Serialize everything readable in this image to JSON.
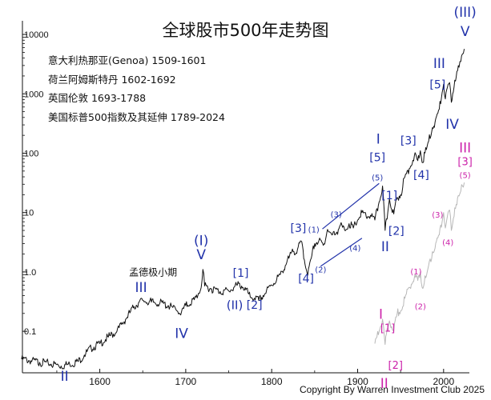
{
  "chart_data": {
    "type": "line",
    "title": "全球股市500年走势图",
    "y_scale": "log",
    "xlim": [
      1510,
      2030
    ],
    "ylim": [
      0.02,
      15000
    ],
    "x_ticks": [
      1600,
      1700,
      1800,
      1900,
      2000
    ],
    "y_ticks": [
      {
        "value": 0.1,
        "label": "0.1"
      },
      {
        "value": 1,
        "label": "1.0"
      },
      {
        "value": 10,
        "label": "10"
      },
      {
        "value": 100,
        "label": "100"
      },
      {
        "value": 1000,
        "label": "1000"
      },
      {
        "value": 10000,
        "label": "10000"
      }
    ],
    "grid": false,
    "legend_position": "top-left",
    "legend": [
      "意大利热那亚(Genoa) 1509-1601",
      "荷兰阿姆斯特丹 1602-1692",
      "英国伦敦 1693-1788",
      "美国标普500指数及其延伸 1789-2024"
    ],
    "series": [
      {
        "color": "#111111",
        "points": [
          [
            1509,
            0.034
          ],
          [
            1520,
            0.032
          ],
          [
            1530,
            0.03
          ],
          [
            1540,
            0.029
          ],
          [
            1555,
            0.026
          ],
          [
            1565,
            0.028
          ],
          [
            1575,
            0.031
          ],
          [
            1582,
            0.04
          ],
          [
            1590,
            0.052
          ],
          [
            1600,
            0.062
          ],
          [
            1610,
            0.08
          ],
          [
            1620,
            0.1
          ],
          [
            1630,
            0.16
          ],
          [
            1640,
            0.26
          ],
          [
            1645,
            0.3
          ],
          [
            1650,
            0.33
          ],
          [
            1660,
            0.31
          ],
          [
            1670,
            0.3
          ],
          [
            1680,
            0.27
          ],
          [
            1690,
            0.22
          ],
          [
            1695,
            0.21
          ],
          [
            1700,
            0.27
          ],
          [
            1710,
            0.34
          ],
          [
            1715,
            0.44
          ],
          [
            1718,
            0.55
          ],
          [
            1720,
            1.1
          ],
          [
            1722,
            0.58
          ],
          [
            1730,
            0.52
          ],
          [
            1740,
            0.47
          ],
          [
            1750,
            0.48
          ],
          [
            1760,
            0.6
          ],
          [
            1765,
            0.58
          ],
          [
            1770,
            0.5
          ],
          [
            1775,
            0.38
          ],
          [
            1780,
            0.36
          ],
          [
            1785,
            0.33
          ],
          [
            1790,
            0.4
          ],
          [
            1800,
            0.6
          ],
          [
            1810,
            0.9
          ],
          [
            1820,
            1.7
          ],
          [
            1825,
            2.2
          ],
          [
            1830,
            2.4
          ],
          [
            1835,
            3.2
          ],
          [
            1838,
            1.6
          ],
          [
            1842,
            0.88
          ],
          [
            1846,
            1.7
          ],
          [
            1850,
            3.0
          ],
          [
            1855,
            3.4
          ],
          [
            1860,
            2.8
          ],
          [
            1865,
            5.2
          ],
          [
            1870,
            4.2
          ],
          [
            1875,
            4.5
          ],
          [
            1880,
            6.2
          ],
          [
            1885,
            5.0
          ],
          [
            1890,
            6.5
          ],
          [
            1895,
            5.5
          ],
          [
            1900,
            7.5
          ],
          [
            1905,
            10.0
          ],
          [
            1910,
            8.5
          ],
          [
            1915,
            9.0
          ],
          [
            1920,
            7.5
          ],
          [
            1925,
            15.0
          ],
          [
            1929,
            28.0
          ],
          [
            1932,
            5.0
          ],
          [
            1935,
            10.0
          ],
          [
            1937,
            17.0
          ],
          [
            1942,
            9.5
          ],
          [
            1946,
            18.0
          ],
          [
            1950,
            20.0
          ],
          [
            1955,
            40.0
          ],
          [
            1960,
            55.0
          ],
          [
            1966,
            90.0
          ],
          [
            1970,
            75.0
          ],
          [
            1973,
            110.0
          ],
          [
            1975,
            70.0
          ],
          [
            1980,
            115.0
          ],
          [
            1987,
            270.0
          ],
          [
            1990,
            330.0
          ],
          [
            1995,
            550.0
          ],
          [
            2000,
            1450.0
          ],
          [
            2002,
            820.0
          ],
          [
            2007,
            1550.0
          ],
          [
            2009,
            720.0
          ],
          [
            2013,
            1700.0
          ],
          [
            2018,
            2800.0
          ],
          [
            2020,
            3500.0
          ],
          [
            2022,
            4700.0
          ],
          [
            2024,
            5700.0
          ]
        ]
      },
      {
        "color": "#b8b8b8",
        "points": [
          [
            1920,
            0.062
          ],
          [
            1925,
            0.1
          ],
          [
            1929,
            0.16
          ],
          [
            1932,
            0.06
          ],
          [
            1935,
            0.11
          ],
          [
            1937,
            0.15
          ],
          [
            1942,
            0.1
          ],
          [
            1946,
            0.2
          ],
          [
            1950,
            0.22
          ],
          [
            1955,
            0.36
          ],
          [
            1960,
            0.55
          ],
          [
            1966,
            0.8
          ],
          [
            1970,
            0.72
          ],
          [
            1973,
            1.0
          ],
          [
            1975,
            0.55
          ],
          [
            1980,
            0.85
          ],
          [
            1987,
            2.2
          ],
          [
            1990,
            2.5
          ],
          [
            1995,
            4.2
          ],
          [
            2000,
            10.0
          ],
          [
            2002,
            5.5
          ],
          [
            2007,
            11.0
          ],
          [
            2009,
            5.0
          ],
          [
            2013,
            12.0
          ],
          [
            2018,
            19.0
          ],
          [
            2020,
            23.0
          ],
          [
            2022,
            28.0
          ],
          [
            2024,
            32.0
          ]
        ]
      }
    ],
    "annotations": [
      {
        "text": "II",
        "x": 1559,
        "y": 0.017,
        "color": "#2233aa",
        "size": 17
      },
      {
        "text": "III",
        "x": 1648,
        "y": 0.54,
        "color": "#2233aa",
        "size": 17
      },
      {
        "text": "IV",
        "x": 1695,
        "y": 0.09,
        "color": "#2233aa",
        "size": 17
      },
      {
        "text": "孟德极小期",
        "x": 1662,
        "y": 0.96,
        "color": "#111111",
        "size": 12
      },
      {
        "text": "(I)",
        "x": 1718,
        "y": 3.3,
        "color": "#2233aa",
        "size": 17
      },
      {
        "text": "V",
        "x": 1718,
        "y": 1.9,
        "color": "#2233aa",
        "size": 17
      },
      {
        "text": "[1]",
        "x": 1764,
        "y": 0.94,
        "color": "#2233aa",
        "size": 14
      },
      {
        "text": "(II)",
        "x": 1757,
        "y": 0.27,
        "color": "#2233aa",
        "size": 15
      },
      {
        "text": "[2]",
        "x": 1780,
        "y": 0.27,
        "color": "#2233aa",
        "size": 14
      },
      {
        "text": "[3]",
        "x": 1831,
        "y": 5.3,
        "color": "#2233aa",
        "size": 14
      },
      {
        "text": "(1)",
        "x": 1849,
        "y": 5.1,
        "color": "#2233aa",
        "size": 10
      },
      {
        "text": "(2)",
        "x": 1857,
        "y": 1.07,
        "color": "#2233aa",
        "size": 10
      },
      {
        "text": "[4]",
        "x": 1840,
        "y": 0.75,
        "color": "#2233aa",
        "size": 14
      },
      {
        "text": "(3)",
        "x": 1875,
        "y": 9.2,
        "color": "#2233aa",
        "size": 10
      },
      {
        "text": "(4)",
        "x": 1897,
        "y": 2.5,
        "color": "#2233aa",
        "size": 10
      },
      {
        "text": "I",
        "x": 1924,
        "y": 170,
        "color": "#2233aa",
        "size": 17
      },
      {
        "text": "[5]",
        "x": 1923,
        "y": 83,
        "color": "#2233aa",
        "size": 14
      },
      {
        "text": "(5)",
        "x": 1923,
        "y": 38,
        "color": "#2233aa",
        "size": 10
      },
      {
        "text": "[1]",
        "x": 1937,
        "y": 19,
        "color": "#2233aa",
        "size": 14
      },
      {
        "text": "II",
        "x": 1932,
        "y": 2.6,
        "color": "#2233aa",
        "size": 17
      },
      {
        "text": "[2]",
        "x": 1945,
        "y": 4.8,
        "color": "#2233aa",
        "size": 14
      },
      {
        "text": "[3]",
        "x": 1959,
        "y": 160,
        "color": "#2233aa",
        "size": 14
      },
      {
        "text": "[4]",
        "x": 1974,
        "y": 42,
        "color": "#2233aa",
        "size": 14
      },
      {
        "text": "III",
        "x": 1995,
        "y": 3200,
        "color": "#2233aa",
        "size": 17
      },
      {
        "text": "[5]",
        "x": 1993,
        "y": 1400,
        "color": "#2233aa",
        "size": 14
      },
      {
        "text": "IV",
        "x": 2010,
        "y": 300,
        "color": "#2233aa",
        "size": 17
      },
      {
        "text": "(III)",
        "x": 2025,
        "y": 23000,
        "color": "#2233aa",
        "size": 17
      },
      {
        "text": "V",
        "x": 2025,
        "y": 11000,
        "color": "#2233aa",
        "size": 17
      },
      {
        "text": "I",
        "x": 1927,
        "y": 0.19,
        "color": "#cc22aa",
        "size": 17
      },
      {
        "text": "[1]",
        "x": 1935,
        "y": 0.11,
        "color": "#cc22aa",
        "size": 13
      },
      {
        "text": "[2]",
        "x": 1944,
        "y": 0.026,
        "color": "#cc22aa",
        "size": 13
      },
      {
        "text": "II",
        "x": 1931,
        "y": 0.013,
        "color": "#cc22aa",
        "size": 17
      },
      {
        "text": "(1)",
        "x": 1968,
        "y": 1.0,
        "color": "#cc22aa",
        "size": 10
      },
      {
        "text": "(2)",
        "x": 1973,
        "y": 0.26,
        "color": "#cc22aa",
        "size": 10
      },
      {
        "text": "(3)",
        "x": 1993,
        "y": 9.0,
        "color": "#cc22aa",
        "size": 10
      },
      {
        "text": "(4)",
        "x": 2005,
        "y": 3.1,
        "color": "#cc22aa",
        "size": 10
      },
      {
        "text": "III",
        "x": 2025,
        "y": 120,
        "color": "#cc22aa",
        "size": 17
      },
      {
        "text": "[3]",
        "x": 2025,
        "y": 70,
        "color": "#cc22aa",
        "size": 13
      },
      {
        "text": "(5)",
        "x": 2025,
        "y": 42,
        "color": "#cc22aa",
        "size": 10
      }
    ],
    "channel_lines": [
      {
        "color": "#2233aa",
        "from": [
          1859,
          5.3
        ],
        "to": [
          1925,
          31.0
        ]
      },
      {
        "color": "#2233aa",
        "from": [
          1857,
          1.25
        ],
        "to": [
          1905,
          3.7
        ]
      }
    ]
  },
  "footer": {
    "copyright": "Copyright By Warren Investment Club 2025"
  }
}
